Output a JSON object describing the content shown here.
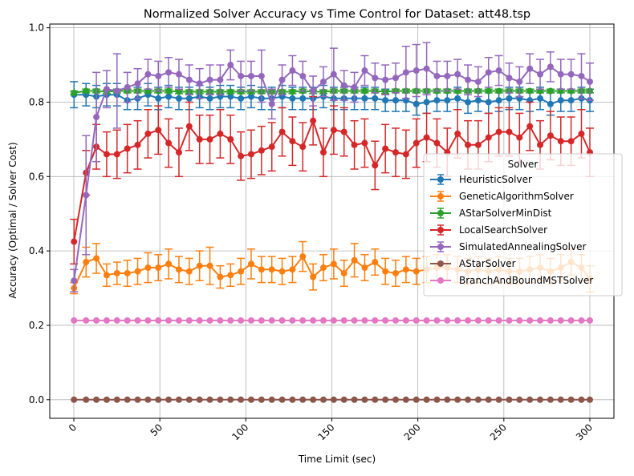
{
  "chart_data": {
    "type": "line",
    "title": "Normalized Solver Accuracy vs Time Control for Dataset: att48.tsp",
    "xlabel": "Time Limit (sec)",
    "ylabel": "Accuracy (Optimal / Solver Cost)",
    "xlim": [
      -14,
      314
    ],
    "ylim": [
      -0.05,
      1.01
    ],
    "xticks": [
      0,
      50,
      100,
      150,
      200,
      250,
      300
    ],
    "yticks": [
      0.0,
      0.2,
      0.4,
      0.6,
      0.8,
      1.0
    ],
    "xtick_labels": [
      "0",
      "50",
      "100",
      "150",
      "200",
      "250",
      "300"
    ],
    "ytick_labels": [
      "0.0",
      "0.2",
      "0.4",
      "0.6",
      "0.8",
      "1.0"
    ],
    "grid": true,
    "legend": {
      "title": "Solver",
      "position": "center-right"
    },
    "x": [
      0.1,
      7.1,
      13.1,
      19.1,
      25.1,
      31.1,
      37.1,
      43.1,
      49.1,
      55.1,
      61.1,
      67.1,
      73.1,
      79.1,
      85.1,
      91.1,
      97.1,
      103.1,
      109.1,
      115.1,
      121.1,
      127.1,
      133.1,
      139.1,
      145.1,
      151.1,
      157.1,
      163.1,
      169.1,
      175.1,
      181.1,
      187.1,
      193.1,
      199.1,
      205.1,
      211.1,
      217.1,
      223.1,
      229.1,
      235.1,
      241.1,
      247.1,
      253.1,
      259.1,
      265.1,
      271.1,
      277.1,
      283.1,
      289.1,
      295.1,
      300.0
    ],
    "series": [
      {
        "name": "HeuristicSolver",
        "color": "#1f77b4",
        "values": [
          0.82,
          0.82,
          0.815,
          0.82,
          0.82,
          0.805,
          0.81,
          0.82,
          0.81,
          0.815,
          0.81,
          0.81,
          0.815,
          0.81,
          0.815,
          0.815,
          0.81,
          0.815,
          0.81,
          0.81,
          0.815,
          0.81,
          0.81,
          0.81,
          0.815,
          0.81,
          0.81,
          0.81,
          0.81,
          0.81,
          0.805,
          0.805,
          0.805,
          0.795,
          0.8,
          0.805,
          0.805,
          0.81,
          0.8,
          0.805,
          0.8,
          0.805,
          0.81,
          0.81,
          0.805,
          0.81,
          0.795,
          0.805,
          0.805,
          0.81,
          0.805
        ],
        "err": [
          0.035,
          0.03,
          0.03,
          0.03,
          0.03,
          0.025,
          0.03,
          0.03,
          0.03,
          0.03,
          0.03,
          0.03,
          0.03,
          0.03,
          0.03,
          0.03,
          0.03,
          0.03,
          0.03,
          0.03,
          0.03,
          0.03,
          0.03,
          0.03,
          0.03,
          0.03,
          0.03,
          0.03,
          0.03,
          0.03,
          0.03,
          0.03,
          0.03,
          0.03,
          0.03,
          0.03,
          0.03,
          0.03,
          0.03,
          0.03,
          0.03,
          0.03,
          0.03,
          0.03,
          0.03,
          0.03,
          0.03,
          0.03,
          0.03,
          0.03,
          0.03
        ]
      },
      {
        "name": "GeneticAlgorithmSolver",
        "color": "#ff7f0e",
        "values": [
          0.3,
          0.37,
          0.38,
          0.335,
          0.34,
          0.34,
          0.345,
          0.355,
          0.355,
          0.365,
          0.35,
          0.345,
          0.36,
          0.36,
          0.33,
          0.335,
          0.345,
          0.365,
          0.35,
          0.35,
          0.345,
          0.35,
          0.385,
          0.33,
          0.355,
          0.365,
          0.34,
          0.375,
          0.355,
          0.37,
          0.345,
          0.34,
          0.35,
          0.345,
          0.35,
          0.355,
          0.355,
          0.35,
          0.345,
          0.35,
          0.345,
          0.35,
          0.345,
          0.345,
          0.35,
          0.355,
          0.345,
          0.355,
          0.37,
          0.355,
          0.325
        ],
        "err": [
          0.015,
          0.04,
          0.04,
          0.03,
          0.03,
          0.035,
          0.035,
          0.04,
          0.035,
          0.04,
          0.035,
          0.035,
          0.04,
          0.05,
          0.03,
          0.03,
          0.035,
          0.04,
          0.035,
          0.035,
          0.035,
          0.035,
          0.04,
          0.035,
          0.035,
          0.04,
          0.035,
          0.045,
          0.035,
          0.035,
          0.035,
          0.035,
          0.035,
          0.035,
          0.035,
          0.035,
          0.035,
          0.035,
          0.035,
          0.035,
          0.035,
          0.035,
          0.035,
          0.035,
          0.035,
          0.035,
          0.035,
          0.035,
          0.035,
          0.035,
          0.035
        ]
      },
      {
        "name": "AStarSolverMinDist",
        "color": "#2ca02c",
        "values": [
          0.825,
          0.83,
          0.83,
          0.828,
          0.83,
          0.83,
          0.83,
          0.83,
          0.83,
          0.83,
          0.828,
          0.828,
          0.828,
          0.828,
          0.828,
          0.828,
          0.828,
          0.828,
          0.828,
          0.828,
          0.828,
          0.828,
          0.83,
          0.828,
          0.828,
          0.83,
          0.83,
          0.83,
          0.83,
          0.83,
          0.828,
          0.83,
          0.83,
          0.83,
          0.83,
          0.83,
          0.83,
          0.83,
          0.83,
          0.83,
          0.83,
          0.83,
          0.83,
          0.83,
          0.83,
          0.83,
          0.83,
          0.83,
          0.83,
          0.83,
          0.83
        ],
        "err": [
          0.005,
          0.005,
          0.005,
          0.005,
          0.005,
          0.005,
          0.005,
          0.005,
          0.005,
          0.005,
          0.005,
          0.005,
          0.005,
          0.005,
          0.005,
          0.005,
          0.005,
          0.005,
          0.005,
          0.005,
          0.005,
          0.005,
          0.005,
          0.005,
          0.005,
          0.005,
          0.005,
          0.005,
          0.005,
          0.005,
          0.005,
          0.005,
          0.005,
          0.005,
          0.005,
          0.005,
          0.005,
          0.005,
          0.005,
          0.005,
          0.005,
          0.005,
          0.005,
          0.005,
          0.005,
          0.005,
          0.005,
          0.005,
          0.005,
          0.005,
          0.005
        ]
      },
      {
        "name": "LocalSearchSolver",
        "color": "#d62728",
        "values": [
          0.425,
          0.61,
          0.68,
          0.66,
          0.66,
          0.675,
          0.685,
          0.715,
          0.725,
          0.69,
          0.665,
          0.735,
          0.7,
          0.7,
          0.715,
          0.7,
          0.655,
          0.66,
          0.67,
          0.68,
          0.72,
          0.695,
          0.68,
          0.75,
          0.665,
          0.725,
          0.72,
          0.685,
          0.69,
          0.63,
          0.675,
          0.665,
          0.66,
          0.69,
          0.705,
          0.69,
          0.665,
          0.715,
          0.685,
          0.685,
          0.705,
          0.72,
          0.72,
          0.705,
          0.735,
          0.685,
          0.71,
          0.695,
          0.695,
          0.715,
          0.665
        ],
        "err": [
          0.06,
          0.06,
          0.06,
          0.06,
          0.065,
          0.065,
          0.065,
          0.065,
          0.065,
          0.065,
          0.065,
          0.065,
          0.065,
          0.065,
          0.065,
          0.065,
          0.065,
          0.065,
          0.065,
          0.065,
          0.065,
          0.065,
          0.065,
          0.065,
          0.065,
          0.065,
          0.065,
          0.065,
          0.065,
          0.065,
          0.065,
          0.065,
          0.065,
          0.065,
          0.065,
          0.065,
          0.065,
          0.065,
          0.065,
          0.065,
          0.065,
          0.065,
          0.065,
          0.065,
          0.065,
          0.065,
          0.065,
          0.065,
          0.065,
          0.065,
          0.065
        ]
      },
      {
        "name": "SimulatedAnnealingSolver",
        "color": "#9467bd",
        "values": [
          0.32,
          0.55,
          0.76,
          0.835,
          0.83,
          0.84,
          0.85,
          0.875,
          0.87,
          0.88,
          0.875,
          0.86,
          0.85,
          0.86,
          0.86,
          0.9,
          0.87,
          0.87,
          0.87,
          0.795,
          0.86,
          0.885,
          0.87,
          0.83,
          0.855,
          0.875,
          0.845,
          0.84,
          0.885,
          0.865,
          0.86,
          0.865,
          0.88,
          0.885,
          0.89,
          0.87,
          0.87,
          0.875,
          0.86,
          0.855,
          0.88,
          0.885,
          0.865,
          0.855,
          0.89,
          0.875,
          0.895,
          0.875,
          0.875,
          0.87,
          0.855
        ],
        "err": [
          0.03,
          0.16,
          0.12,
          0.05,
          0.1,
          0.04,
          0.04,
          0.04,
          0.04,
          0.04,
          0.04,
          0.04,
          0.04,
          0.04,
          0.04,
          0.04,
          0.04,
          0.04,
          0.07,
          0.04,
          0.04,
          0.04,
          0.04,
          0.04,
          0.04,
          0.07,
          0.04,
          0.04,
          0.04,
          0.04,
          0.04,
          0.04,
          0.07,
          0.07,
          0.07,
          0.04,
          0.04,
          0.04,
          0.04,
          0.04,
          0.04,
          0.04,
          0.04,
          0.04,
          0.04,
          0.04,
          0.04,
          0.04,
          0.04,
          0.06,
          0.05
        ]
      },
      {
        "name": "AStarSolver",
        "color": "#8c564b",
        "values": [
          0,
          0,
          0,
          0,
          0,
          0,
          0,
          0,
          0,
          0,
          0,
          0,
          0,
          0,
          0,
          0,
          0,
          0,
          0,
          0,
          0,
          0,
          0,
          0,
          0,
          0,
          0,
          0,
          0,
          0,
          0,
          0,
          0,
          0,
          0,
          0,
          0,
          0,
          0,
          0,
          0,
          0,
          0,
          0,
          0,
          0,
          0,
          0,
          0,
          0,
          0
        ],
        "err": null
      },
      {
        "name": "BranchAndBoundMSTSolver",
        "color": "#e377c2",
        "values": [
          0.213,
          0.213,
          0.213,
          0.213,
          0.213,
          0.213,
          0.213,
          0.213,
          0.213,
          0.213,
          0.213,
          0.213,
          0.213,
          0.213,
          0.213,
          0.213,
          0.213,
          0.213,
          0.213,
          0.213,
          0.213,
          0.213,
          0.213,
          0.213,
          0.213,
          0.213,
          0.213,
          0.213,
          0.213,
          0.213,
          0.213,
          0.213,
          0.213,
          0.213,
          0.213,
          0.213,
          0.213,
          0.213,
          0.213,
          0.213,
          0.213,
          0.213,
          0.213,
          0.213,
          0.213,
          0.213,
          0.213,
          0.213,
          0.213,
          0.213,
          0.213
        ],
        "err": null
      }
    ]
  }
}
